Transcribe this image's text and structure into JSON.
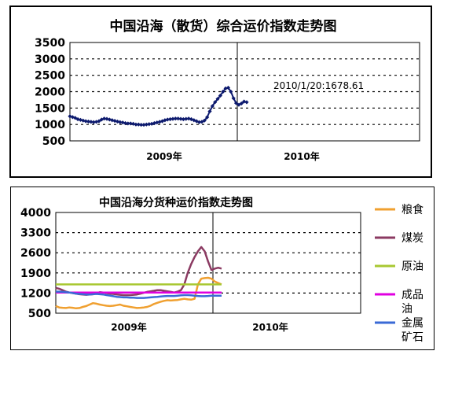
{
  "charts": [
    {
      "chart_data": {
        "type": "line",
        "title": "中国沿海（散货）综合运价指数走势图",
        "xlabel": "",
        "ylabel": "",
        "ylim": [
          500,
          3500
        ],
        "y_ticks": [
          500,
          1000,
          1500,
          2000,
          2500,
          3000,
          3500
        ],
        "x_labels": [
          "2009年",
          "2010年"
        ],
        "grid": "horizontal-dashed",
        "annotation": "2010/1/20:1678.61",
        "series": [
          {
            "color": "#0d1a6e",
            "marker": "diamond",
            "values": [
              1250,
              1225,
              1200,
              1160,
              1140,
              1120,
              1100,
              1090,
              1080,
              1070,
              1080,
              1100,
              1150,
              1180,
              1170,
              1150,
              1130,
              1110,
              1090,
              1070,
              1060,
              1040,
              1030,
              1030,
              1020,
              1000,
              1000,
              990,
              990,
              1000,
              1010,
              1020,
              1040,
              1060,
              1080,
              1100,
              1130,
              1150,
              1160,
              1170,
              1180,
              1180,
              1170,
              1160,
              1170,
              1180,
              1160,
              1130,
              1100,
              1070,
              1080,
              1120,
              1220,
              1400,
              1560,
              1680,
              1780,
              1880,
              2000,
              2100,
              2120,
              2000,
              1800,
              1650,
              1600,
              1640,
              1700,
              1678.61
            ]
          }
        ]
      }
    },
    {
      "chart_data": {
        "type": "line",
        "title": "中国沿海分货种运价指数走势图",
        "xlabel": "",
        "ylabel": "",
        "ylim": [
          500,
          4000
        ],
        "y_ticks": [
          500,
          1200,
          1900,
          2600,
          3300,
          4000
        ],
        "x_labels": [
          "2009年",
          "2010年"
        ],
        "grid": "horizontal-dashed",
        "legend_position": "right",
        "series": [
          {
            "name": "粮食",
            "color": "#f0a030",
            "values": [
              750,
              700,
              690,
              680,
              700,
              690,
              670,
              680,
              720,
              750,
              800,
              850,
              830,
              800,
              780,
              760,
              750,
              760,
              780,
              800,
              760,
              740,
              720,
              700,
              680,
              690,
              700,
              720,
              760,
              820,
              860,
              900,
              930,
              950,
              940,
              950,
              960,
              980,
              1000,
              980,
              970,
              1000,
              1500,
              1700,
              1720,
              1730,
              1700,
              1600,
              1550,
              1500
            ]
          },
          {
            "name": "煤炭",
            "color": "#8b3a62",
            "values": [
              1380,
              1350,
              1300,
              1250,
              1220,
              1200,
              1180,
              1160,
              1150,
              1140,
              1150,
              1160,
              1200,
              1230,
              1220,
              1200,
              1180,
              1170,
              1150,
              1140,
              1130,
              1130,
              1130,
              1140,
              1150,
              1180,
              1210,
              1240,
              1260,
              1280,
              1300,
              1300,
              1280,
              1260,
              1240,
              1220,
              1250,
              1300,
              1500,
              1900,
              2200,
              2450,
              2650,
              2800,
              2650,
              2300,
              2000,
              2050,
              2080,
              2050
            ]
          },
          {
            "name": "原油",
            "color": "#a8c832",
            "values": [
              1500,
              1500,
              1500,
              1500,
              1500,
              1500,
              1500,
              1500,
              1500,
              1500,
              1500,
              1500,
              1500,
              1500,
              1500,
              1500,
              1500,
              1500,
              1500,
              1500,
              1500,
              1500,
              1500,
              1500,
              1500,
              1500,
              1500,
              1500,
              1500,
              1500,
              1500,
              1500,
              1500,
              1500,
              1500,
              1500,
              1500,
              1500,
              1500,
              1500,
              1500,
              1500,
              1500,
              1500,
              1500,
              1500,
              1500,
              1500,
              1500,
              1500
            ]
          },
          {
            "name": "成品油",
            "color": "#e000e0",
            "values": [
              1220,
              1220,
              1220,
              1220,
              1220,
              1220,
              1220,
              1220,
              1220,
              1220,
              1220,
              1220,
              1220,
              1220,
              1220,
              1220,
              1220,
              1220,
              1220,
              1220,
              1220,
              1220,
              1220,
              1220,
              1220,
              1220,
              1220,
              1220,
              1220,
              1220,
              1220,
              1220,
              1220,
              1220,
              1220,
              1220,
              1220,
              1220,
              1220,
              1220,
              1220,
              1220,
              1220,
              1220,
              1220,
              1220,
              1220,
              1220,
              1220,
              1220
            ]
          },
          {
            "name": "金属矿石",
            "color": "#3a6ad6",
            "values": [
              1250,
              1250,
              1240,
              1230,
              1220,
              1200,
              1180,
              1170,
              1160,
              1150,
              1150,
              1160,
              1170,
              1160,
              1150,
              1130,
              1110,
              1090,
              1070,
              1060,
              1050,
              1050,
              1040,
              1040,
              1030,
              1030,
              1030,
              1040,
              1050,
              1060,
              1070,
              1080,
              1090,
              1100,
              1100,
              1100,
              1110,
              1120,
              1130,
              1130,
              1120,
              1110,
              1100,
              1090,
              1090,
              1100,
              1110,
              1110,
              1110,
              1110
            ]
          }
        ]
      }
    }
  ]
}
